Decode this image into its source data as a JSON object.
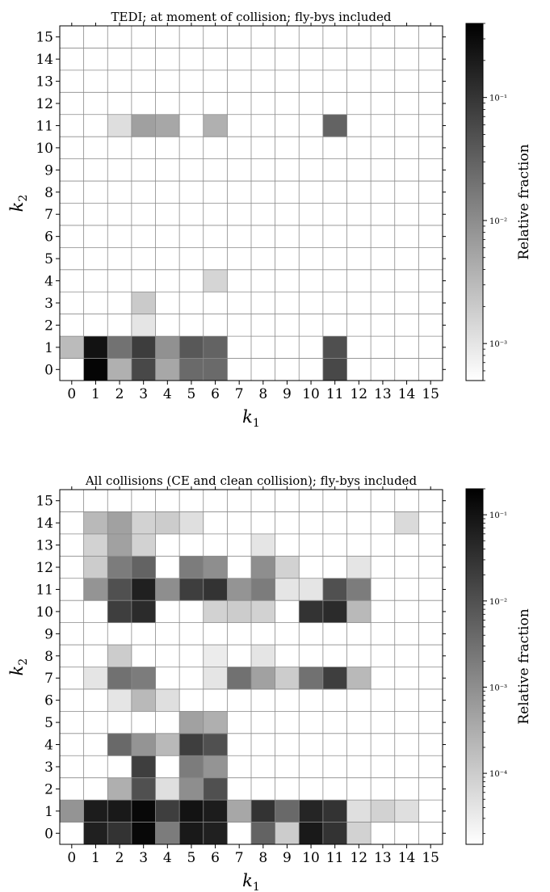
{
  "chart_data": [
    {
      "type": "heatmap",
      "title": "TEDI; at moment of collision; fly-bys included",
      "xlabel": "k",
      "xlabel_sub": "1",
      "ylabel": "k",
      "ylabel_sub": "2",
      "x_ticks": [
        "0",
        "1",
        "2",
        "3",
        "4",
        "5",
        "6",
        "7",
        "8",
        "9",
        "10",
        "11",
        "12",
        "13",
        "14",
        "15"
      ],
      "y_ticks": [
        "0",
        "1",
        "2",
        "3",
        "4",
        "5",
        "6",
        "7",
        "8",
        "9",
        "10",
        "11",
        "12",
        "13",
        "14",
        "15"
      ],
      "colorbar": {
        "label": "Relative fraction",
        "scale": "log",
        "range": [
          0.0005,
          0.4
        ],
        "ticks": [
          {
            "value": 0.001,
            "label": "10⁻³"
          },
          {
            "value": 0.01,
            "label": "10⁻²"
          },
          {
            "value": 0.1,
            "label": "10⁻¹"
          }
        ],
        "colormap": "Greys"
      },
      "cells": [
        {
          "k1": 1,
          "k2": 0,
          "value": 0.35
        },
        {
          "k1": 2,
          "k2": 0,
          "value": 0.004
        },
        {
          "k1": 3,
          "k2": 0,
          "value": 0.06
        },
        {
          "k1": 4,
          "k2": 0,
          "value": 0.005
        },
        {
          "k1": 5,
          "k2": 0,
          "value": 0.025
        },
        {
          "k1": 6,
          "k2": 0,
          "value": 0.025
        },
        {
          "k1": 11,
          "k2": 0,
          "value": 0.06
        },
        {
          "k1": 0,
          "k2": 1,
          "value": 0.003
        },
        {
          "k1": 1,
          "k2": 1,
          "value": 0.25
        },
        {
          "k1": 2,
          "k2": 1,
          "value": 0.02
        },
        {
          "k1": 3,
          "k2": 1,
          "value": 0.08
        },
        {
          "k1": 4,
          "k2": 1,
          "value": 0.009
        },
        {
          "k1": 5,
          "k2": 1,
          "value": 0.04
        },
        {
          "k1": 6,
          "k2": 1,
          "value": 0.03
        },
        {
          "k1": 11,
          "k2": 1,
          "value": 0.05
        },
        {
          "k1": 3,
          "k2": 2,
          "value": 0.001
        },
        {
          "k1": 3,
          "k2": 3,
          "value": 0.002
        },
        {
          "k1": 6,
          "k2": 4,
          "value": 0.0015
        },
        {
          "k1": 2,
          "k2": 11,
          "value": 0.0012
        },
        {
          "k1": 3,
          "k2": 11,
          "value": 0.006
        },
        {
          "k1": 4,
          "k2": 11,
          "value": 0.005
        },
        {
          "k1": 6,
          "k2": 11,
          "value": 0.004
        },
        {
          "k1": 11,
          "k2": 11,
          "value": 0.03
        }
      ]
    },
    {
      "type": "heatmap",
      "title": "All collisions (CE and clean collision); fly-bys included",
      "xlabel": "k",
      "xlabel_sub": "1",
      "ylabel": "k",
      "ylabel_sub": "2",
      "x_ticks": [
        "0",
        "1",
        "2",
        "3",
        "4",
        "5",
        "6",
        "7",
        "8",
        "9",
        "10",
        "11",
        "12",
        "13",
        "14",
        "15"
      ],
      "y_ticks": [
        "0",
        "1",
        "2",
        "3",
        "4",
        "5",
        "6",
        "7",
        "8",
        "9",
        "10",
        "11",
        "12",
        "13",
        "14",
        "15"
      ],
      "colorbar": {
        "label": "Relative fraction",
        "scale": "log",
        "range": [
          1.5e-05,
          0.2
        ],
        "ticks": [
          {
            "value": 0.0001,
            "label": "10⁻⁴"
          },
          {
            "value": 0.001,
            "label": "10⁻³"
          },
          {
            "value": 0.01,
            "label": "10⁻²"
          },
          {
            "value": 0.1,
            "label": "10⁻¹"
          }
        ],
        "colormap": "Greys"
      },
      "cells": [
        {
          "k1": 1,
          "k2": 0,
          "value": 0.06
        },
        {
          "k1": 2,
          "k2": 0,
          "value": 0.03
        },
        {
          "k1": 3,
          "k2": 0,
          "value": 0.15
        },
        {
          "k1": 4,
          "k2": 0,
          "value": 0.002
        },
        {
          "k1": 5,
          "k2": 0,
          "value": 0.08
        },
        {
          "k1": 6,
          "k2": 0,
          "value": 0.06
        },
        {
          "k1": 8,
          "k2": 0,
          "value": 0.005
        },
        {
          "k1": 9,
          "k2": 0,
          "value": 0.0001
        },
        {
          "k1": 10,
          "k2": 0,
          "value": 0.08
        },
        {
          "k1": 11,
          "k2": 0,
          "value": 0.03
        },
        {
          "k1": 12,
          "k2": 0,
          "value": 8e-05
        },
        {
          "k1": 0,
          "k2": 1,
          "value": 0.0008
        },
        {
          "k1": 1,
          "k2": 1,
          "value": 0.07
        },
        {
          "k1": 2,
          "k2": 1,
          "value": 0.08
        },
        {
          "k1": 3,
          "k2": 1,
          "value": 0.15
        },
        {
          "k1": 4,
          "k2": 1,
          "value": 0.02
        },
        {
          "k1": 5,
          "k2": 1,
          "value": 0.1
        },
        {
          "k1": 6,
          "k2": 1,
          "value": 0.07
        },
        {
          "k1": 7,
          "k2": 1,
          "value": 0.0004
        },
        {
          "k1": 8,
          "k2": 1,
          "value": 0.03
        },
        {
          "k1": 9,
          "k2": 1,
          "value": 0.004
        },
        {
          "k1": 10,
          "k2": 1,
          "value": 0.05
        },
        {
          "k1": 11,
          "k2": 1,
          "value": 0.03
        },
        {
          "k1": 12,
          "k2": 1,
          "value": 5e-05
        },
        {
          "k1": 13,
          "k2": 1,
          "value": 8e-05
        },
        {
          "k1": 14,
          "k2": 1,
          "value": 5e-05
        },
        {
          "k1": 2,
          "k2": 2,
          "value": 0.0003
        },
        {
          "k1": 3,
          "k2": 2,
          "value": 0.01
        },
        {
          "k1": 4,
          "k2": 2,
          "value": 5e-05
        },
        {
          "k1": 5,
          "k2": 2,
          "value": 0.001
        },
        {
          "k1": 6,
          "k2": 2,
          "value": 0.01
        },
        {
          "k1": 3,
          "k2": 3,
          "value": 0.02
        },
        {
          "k1": 5,
          "k2": 3,
          "value": 0.002
        },
        {
          "k1": 6,
          "k2": 3,
          "value": 0.0008
        },
        {
          "k1": 2,
          "k2": 4,
          "value": 0.004
        },
        {
          "k1": 3,
          "k2": 4,
          "value": 0.0008
        },
        {
          "k1": 4,
          "k2": 4,
          "value": 0.0002
        },
        {
          "k1": 5,
          "k2": 4,
          "value": 0.02
        },
        {
          "k1": 6,
          "k2": 4,
          "value": 0.01
        },
        {
          "k1": 5,
          "k2": 5,
          "value": 0.0005
        },
        {
          "k1": 6,
          "k2": 5,
          "value": 0.0003
        },
        {
          "k1": 2,
          "k2": 6,
          "value": 4e-05
        },
        {
          "k1": 3,
          "k2": 6,
          "value": 0.0002
        },
        {
          "k1": 4,
          "k2": 6,
          "value": 5e-05
        },
        {
          "k1": 1,
          "k2": 7,
          "value": 4e-05
        },
        {
          "k1": 2,
          "k2": 7,
          "value": 0.003
        },
        {
          "k1": 3,
          "k2": 7,
          "value": 0.002
        },
        {
          "k1": 6,
          "k2": 7,
          "value": 4e-05
        },
        {
          "k1": 7,
          "k2": 7,
          "value": 0.003
        },
        {
          "k1": 8,
          "k2": 7,
          "value": 0.0005
        },
        {
          "k1": 9,
          "k2": 7,
          "value": 0.0001
        },
        {
          "k1": 10,
          "k2": 7,
          "value": 0.003
        },
        {
          "k1": 11,
          "k2": 7,
          "value": 0.02
        },
        {
          "k1": 12,
          "k2": 7,
          "value": 0.0002
        },
        {
          "k1": 2,
          "k2": 8,
          "value": 0.0001
        },
        {
          "k1": 6,
          "k2": 8,
          "value": 3e-05
        },
        {
          "k1": 8,
          "k2": 8,
          "value": 4e-05
        },
        {
          "k1": 2,
          "k2": 10,
          "value": 0.02
        },
        {
          "k1": 3,
          "k2": 10,
          "value": 0.04
        },
        {
          "k1": 6,
          "k2": 10,
          "value": 8e-05
        },
        {
          "k1": 7,
          "k2": 10,
          "value": 0.0001
        },
        {
          "k1": 8,
          "k2": 10,
          "value": 8e-05
        },
        {
          "k1": 10,
          "k2": 10,
          "value": 0.03
        },
        {
          "k1": 11,
          "k2": 10,
          "value": 0.04
        },
        {
          "k1": 12,
          "k2": 10,
          "value": 0.0002
        },
        {
          "k1": 1,
          "k2": 11,
          "value": 0.0008
        },
        {
          "k1": 2,
          "k2": 11,
          "value": 0.01
        },
        {
          "k1": 3,
          "k2": 11,
          "value": 0.06
        },
        {
          "k1": 4,
          "k2": 11,
          "value": 0.001
        },
        {
          "k1": 5,
          "k2": 11,
          "value": 0.02
        },
        {
          "k1": 6,
          "k2": 11,
          "value": 0.03
        },
        {
          "k1": 7,
          "k2": 11,
          "value": 0.0008
        },
        {
          "k1": 8,
          "k2": 11,
          "value": 0.002
        },
        {
          "k1": 9,
          "k2": 11,
          "value": 4e-05
        },
        {
          "k1": 10,
          "k2": 11,
          "value": 4e-05
        },
        {
          "k1": 11,
          "k2": 11,
          "value": 0.01
        },
        {
          "k1": 12,
          "k2": 11,
          "value": 0.002
        },
        {
          "k1": 1,
          "k2": 12,
          "value": 0.0001
        },
        {
          "k1": 2,
          "k2": 12,
          "value": 0.002
        },
        {
          "k1": 3,
          "k2": 12,
          "value": 0.005
        },
        {
          "k1": 5,
          "k2": 12,
          "value": 0.002
        },
        {
          "k1": 6,
          "k2": 12,
          "value": 0.001
        },
        {
          "k1": 8,
          "k2": 12,
          "value": 0.001
        },
        {
          "k1": 9,
          "k2": 12,
          "value": 8e-05
        },
        {
          "k1": 12,
          "k2": 12,
          "value": 4e-05
        },
        {
          "k1": 1,
          "k2": 13,
          "value": 8e-05
        },
        {
          "k1": 2,
          "k2": 13,
          "value": 0.0005
        },
        {
          "k1": 3,
          "k2": 13,
          "value": 8e-05
        },
        {
          "k1": 8,
          "k2": 13,
          "value": 4e-05
        },
        {
          "k1": 1,
          "k2": 14,
          "value": 0.0002
        },
        {
          "k1": 2,
          "k2": 14,
          "value": 0.0005
        },
        {
          "k1": 3,
          "k2": 14,
          "value": 8e-05
        },
        {
          "k1": 4,
          "k2": 14,
          "value": 0.0001
        },
        {
          "k1": 5,
          "k2": 14,
          "value": 5e-05
        },
        {
          "k1": 14,
          "k2": 14,
          "value": 6e-05
        }
      ]
    }
  ]
}
